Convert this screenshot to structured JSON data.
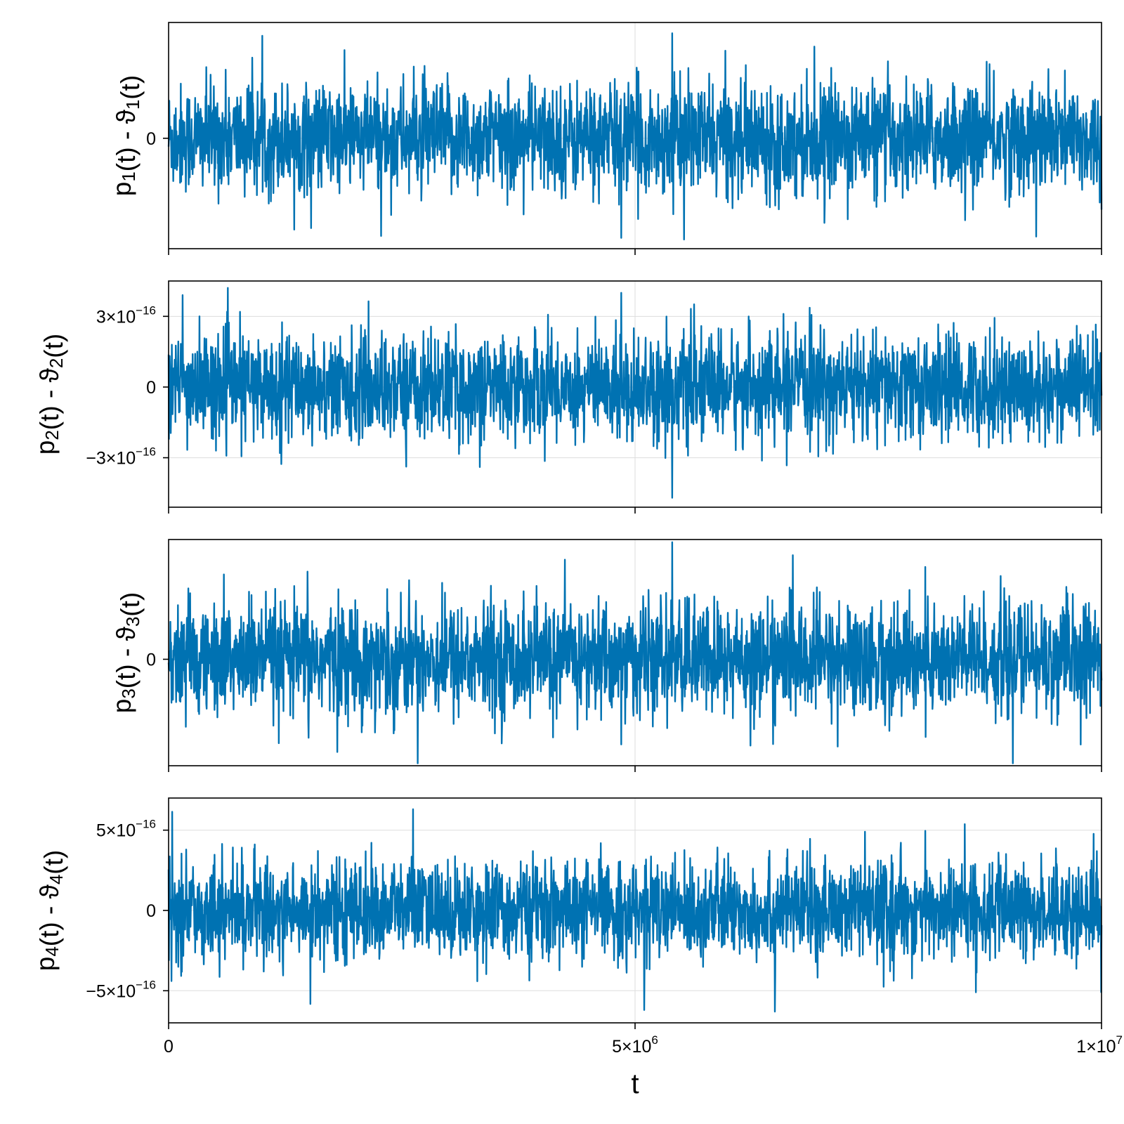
{
  "colors": {
    "series": "#0072b2",
    "axis": "#000000",
    "grid": "#dddddd",
    "background": "#ffffff"
  },
  "x_axis": {
    "label": "t",
    "range": [
      0,
      10000000
    ],
    "ticks": [
      {
        "value": 0,
        "mantissa": "0",
        "exponent": ""
      },
      {
        "value": 5000000,
        "mantissa": "5×10",
        "exponent": "6"
      },
      {
        "value": 10000000,
        "mantissa": "1×10",
        "exponent": "7"
      }
    ]
  },
  "chart_data": [
    {
      "type": "line",
      "ylabel": {
        "p": "p",
        "sub": "1",
        "mid": "(t) - ϑ",
        "sub2": "1",
        "end": "(t)"
      },
      "ylim": [
        -8.2e-16,
        8.6e-16
      ],
      "yticks": [
        {
          "value": 0,
          "mantissa": "0",
          "exponent": ""
        }
      ],
      "grid": true,
      "series": [
        {
          "color": "#0072b2",
          "noise_std": 2e-16,
          "extremes": [
            [
              5400000,
              7.8e-16
            ],
            [
              4850000,
              -7.4e-16
            ],
            [
              9300000,
              -7.3e-16
            ]
          ]
        }
      ]
    },
    {
      "type": "line",
      "ylabel": {
        "p": "p",
        "sub": "2",
        "mid": "(t) - ϑ",
        "sub2": "2",
        "end": "(t)"
      },
      "ylim": [
        -5.1e-16,
        4.5e-16
      ],
      "yticks": [
        {
          "value": 3e-16,
          "mantissa": "3×10",
          "exponent": "−16"
        },
        {
          "value": 0,
          "mantissa": "0",
          "exponent": ""
        },
        {
          "value": -3e-16,
          "mantissa": "−3×10",
          "exponent": "−16"
        }
      ],
      "grid": true,
      "series": [
        {
          "color": "#0072b2",
          "noise_std": 1.1e-16,
          "extremes": [
            [
              4850000,
              4e-16
            ],
            [
              5400000,
              -4.7e-16
            ],
            [
              150000,
              3.9e-16
            ]
          ]
        }
      ]
    },
    {
      "type": "line",
      "ylabel": {
        "p": "p",
        "sub": "3",
        "mid": "(t) - ϑ",
        "sub2": "3",
        "end": "(t)"
      },
      "ylim": [
        -8e-16,
        9e-16
      ],
      "yticks": [
        {
          "value": 0,
          "mantissa": "0",
          "exponent": ""
        }
      ],
      "grid": true,
      "series": [
        {
          "color": "#0072b2",
          "noise_std": 2.1e-16,
          "extremes": [
            [
              5400000,
              8.8e-16
            ],
            [
              4850000,
              -6.4e-16
            ],
            [
              1500000,
              -5.9e-16
            ]
          ]
        }
      ]
    },
    {
      "type": "line",
      "ylabel": {
        "p": "p",
        "sub": "4",
        "mid": "(t) - ϑ",
        "sub2": "4",
        "end": "(t)"
      },
      "ylim": [
        -7e-16,
        7e-16
      ],
      "yticks": [
        {
          "value": 5e-16,
          "mantissa": "5×10",
          "exponent": "−16"
        },
        {
          "value": 0,
          "mantissa": "0",
          "exponent": ""
        },
        {
          "value": -5e-16,
          "mantissa": "−5×10",
          "exponent": "−16"
        }
      ],
      "grid": true,
      "series": [
        {
          "color": "#0072b2",
          "noise_std": 1.5e-16,
          "extremes": [
            [
              2620000,
              6.3e-16
            ],
            [
              6500000,
              -6.3e-16
            ],
            [
              5100000,
              -6.2e-16
            ]
          ]
        }
      ]
    }
  ]
}
